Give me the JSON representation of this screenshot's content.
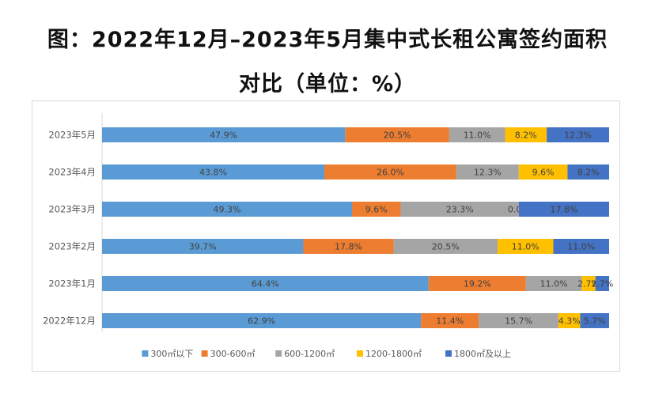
{
  "title_line1": "图：2022年12月–2023年5月集中式长租公寓签约面积",
  "title_line2": "对比（单位：%）",
  "chart_data": {
    "type": "bar",
    "orientation": "horizontal",
    "stacked": true,
    "categories": [
      "2023年5月",
      "2023年4月",
      "2023年3月",
      "2023年2月",
      "2023年1月",
      "2022年12月"
    ],
    "series": [
      {
        "name": "300㎡以下",
        "color": "#5B9BD5",
        "values": [
          47.9,
          43.8,
          49.3,
          39.7,
          64.4,
          62.9
        ],
        "labels": [
          "47.9%",
          "43.8%",
          "49.3%",
          "39.7%",
          "64.4%",
          "62.9%"
        ]
      },
      {
        "name": "300-600㎡",
        "color": "#ED7D31",
        "values": [
          20.5,
          26.0,
          9.6,
          17.8,
          19.2,
          11.4
        ],
        "labels": [
          "20.5%",
          "26.0%",
          "9.6%",
          "17.8%",
          "19.2%",
          "11.4%"
        ]
      },
      {
        "name": "600-1200㎡",
        "color": "#A5A5A5",
        "values": [
          11.0,
          12.3,
          23.3,
          20.5,
          11.0,
          15.7
        ],
        "labels": [
          "11.0%",
          "12.3%",
          "23.3%",
          "20.5%",
          "11.0%",
          "15.7%"
        ]
      },
      {
        "name": "1200-1800㎡",
        "color": "#FFC000",
        "values": [
          8.2,
          9.6,
          0.0,
          11.0,
          2.7,
          4.3
        ],
        "labels": [
          "8.2%",
          "9.6%",
          "0.0%",
          "11.0%",
          "2.7%",
          "4.3%"
        ]
      },
      {
        "name": "1800㎡及以上",
        "color": "#4472C4",
        "values": [
          12.3,
          8.2,
          17.8,
          11.0,
          2.7,
          5.7
        ],
        "labels": [
          "12.3%",
          "8.2%",
          "17.8%",
          "11.0%",
          "2.7%",
          "5.7%"
        ]
      }
    ],
    "legend_position": "bottom",
    "grid": false
  }
}
